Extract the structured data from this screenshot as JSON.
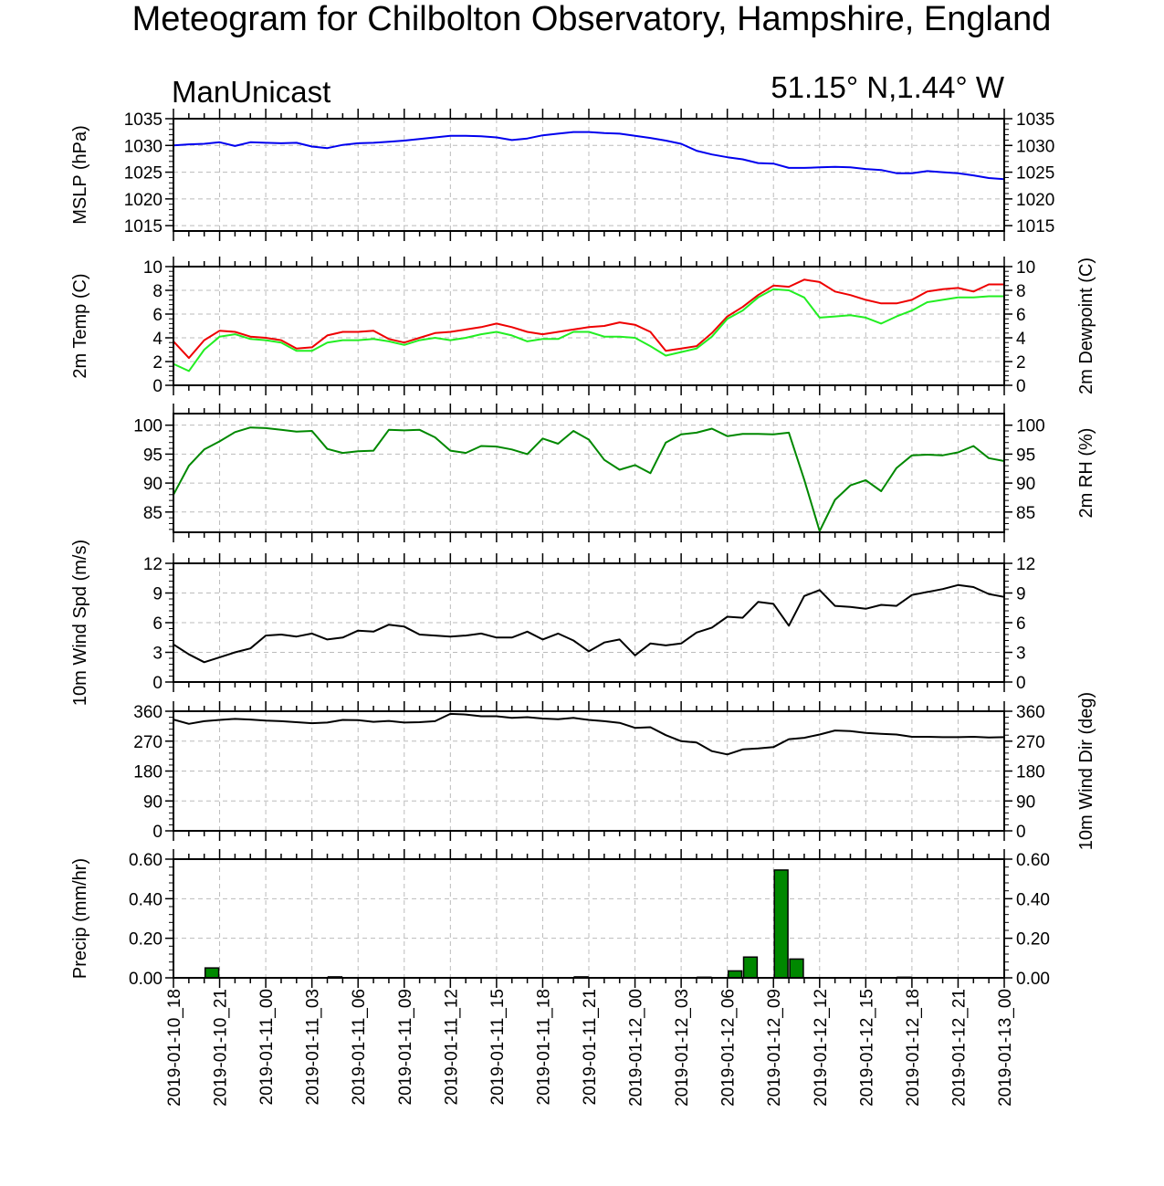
{
  "header": {
    "title": "Meteogram for Chilbolton Observatory, Hampshire, England",
    "left_label": "ManUnicast",
    "right_label": "51.15° N,1.44° W"
  },
  "colors": {
    "mslp": "#0000ee",
    "temp": "#ee0000",
    "dewpoint": "#22ee22",
    "rh": "#008800",
    "wind": "#000000",
    "precip_fill": "#008800",
    "grid": "#bbbbbb"
  },
  "chart_data": {
    "type": "line",
    "x_tick_labels": [
      "2019-01-10_18",
      "2019-01-10_21",
      "2019-01-11_00",
      "2019-01-11_03",
      "2019-01-11_06",
      "2019-01-11_09",
      "2019-01-11_12",
      "2019-01-11_15",
      "2019-01-11_18",
      "2019-01-11_21",
      "2019-01-12_00",
      "2019-01-12_03",
      "2019-01-12_06",
      "2019-01-12_09",
      "2019-01-12_12",
      "2019-01-12_15",
      "2019-01-12_18",
      "2019-01-12_21",
      "2019-01-13_00"
    ],
    "x_hours": [
      0,
      1,
      2,
      3,
      4,
      5,
      6,
      7,
      8,
      9,
      10,
      11,
      12,
      13,
      14,
      15,
      16,
      17,
      18,
      19,
      20,
      21,
      22,
      23,
      24,
      25,
      26,
      27,
      28,
      29,
      30,
      31,
      32,
      33,
      34,
      35,
      36,
      37,
      38,
      39,
      40,
      41,
      42,
      43,
      44,
      45,
      46,
      47,
      48,
      49,
      50,
      51,
      52,
      53,
      54
    ],
    "panels": [
      {
        "id": "mslp",
        "left_label": "MSLP (hPa)",
        "right_label": "",
        "ylim": [
          1014,
          1035
        ],
        "ticks": [
          1015,
          1020,
          1025,
          1030,
          1035
        ],
        "tick_labels": [
          "1015",
          "1020",
          "1025",
          "1030",
          "1035"
        ],
        "series": [
          {
            "key": "mslp",
            "values": [
              1030.0,
              1030.2,
              1030.3,
              1030.6,
              1029.9,
              1030.6,
              1030.5,
              1030.4,
              1030.5,
              1029.8,
              1029.5,
              1030.1,
              1030.4,
              1030.5,
              1030.7,
              1030.9,
              1031.2,
              1031.5,
              1031.8,
              1031.8,
              1031.7,
              1031.5,
              1031.0,
              1031.3,
              1031.9,
              1032.2,
              1032.5,
              1032.5,
              1032.3,
              1032.2,
              1031.8,
              1031.4,
              1030.9,
              1030.3,
              1029.0,
              1028.3,
              1027.8,
              1027.4,
              1026.7,
              1026.6,
              1025.8,
              1025.8,
              1025.9,
              1026.0,
              1025.9,
              1025.6,
              1025.4,
              1024.8,
              1024.8,
              1025.2,
              1025.0,
              1024.8,
              1024.4,
              1023.9,
              1023.7
            ]
          }
        ]
      },
      {
        "id": "temp",
        "left_label": "2m Temp (C)",
        "right_label": "2m Dewpoint (C)",
        "ylim": [
          0,
          10
        ],
        "ticks": [
          0,
          2,
          4,
          6,
          8,
          10
        ],
        "tick_labels": [
          "0",
          "2",
          "4",
          "6",
          "8",
          "10"
        ],
        "series": [
          {
            "key": "temp",
            "values": [
              3.7,
              2.3,
              3.8,
              4.6,
              4.5,
              4.1,
              4.0,
              3.8,
              3.1,
              3.2,
              4.2,
              4.5,
              4.5,
              4.6,
              3.9,
              3.6,
              4.0,
              4.4,
              4.5,
              4.7,
              4.9,
              5.2,
              4.9,
              4.5,
              4.3,
              4.5,
              4.7,
              4.9,
              5.0,
              5.3,
              5.1,
              4.5,
              2.9,
              3.1,
              3.3,
              4.4,
              5.8,
              6.6,
              7.6,
              8.4,
              8.3,
              8.9,
              8.7,
              7.9,
              7.6,
              7.2,
              6.9,
              6.9,
              7.2,
              7.9,
              8.1,
              8.2,
              7.9,
              8.5,
              8.5
            ]
          },
          {
            "key": "dewpoint",
            "values": [
              1.8,
              1.2,
              3.0,
              4.1,
              4.3,
              3.9,
              3.8,
              3.6,
              2.9,
              2.9,
              3.6,
              3.8,
              3.8,
              3.9,
              3.7,
              3.4,
              3.8,
              4.0,
              3.8,
              4.0,
              4.3,
              4.5,
              4.2,
              3.7,
              3.9,
              3.9,
              4.5,
              4.5,
              4.1,
              4.1,
              4.0,
              3.3,
              2.5,
              2.8,
              3.1,
              4.1,
              5.6,
              6.3,
              7.4,
              8.1,
              8.0,
              7.4,
              5.7,
              5.8,
              5.9,
              5.7,
              5.2,
              5.8,
              6.3,
              7.0,
              7.2,
              7.4,
              7.4,
              7.5,
              7.5
            ]
          }
        ]
      },
      {
        "id": "rh",
        "left_label": "",
        "right_label": "2m RH (%)",
        "ylim": [
          81.5,
          102
        ],
        "ticks": [
          85,
          90,
          95,
          100
        ],
        "tick_labels": [
          "85",
          "90",
          "95",
          "100"
        ],
        "series": [
          {
            "key": "rh",
            "values": [
              88.0,
              93.0,
              95.8,
              97.2,
              98.8,
              99.6,
              99.5,
              99.2,
              98.9,
              99.0,
              95.9,
              95.2,
              95.5,
              95.6,
              99.2,
              99.1,
              99.2,
              97.9,
              95.6,
              95.2,
              96.4,
              96.3,
              95.8,
              95.0,
              97.7,
              96.8,
              99.0,
              97.5,
              94.0,
              92.3,
              93.1,
              91.7,
              97.0,
              98.4,
              98.7,
              99.4,
              98.1,
              98.5,
              98.5,
              98.4,
              98.7,
              90.6,
              81.7,
              87.1,
              89.6,
              90.5,
              88.6,
              92.6,
              94.8,
              94.9,
              94.8,
              95.3,
              96.4,
              94.3,
              93.8
            ]
          }
        ]
      },
      {
        "id": "wind",
        "left_label": "10m Wind Spd (m/s)",
        "right_label": "",
        "ylim": [
          0,
          12
        ],
        "ticks": [
          0,
          3,
          6,
          9,
          12
        ],
        "tick_labels": [
          "0",
          "3",
          "6",
          "9",
          "12"
        ],
        "series": [
          {
            "key": "wind",
            "values": [
              3.8,
              2.8,
              2.0,
              2.5,
              3.0,
              3.4,
              4.7,
              4.8,
              4.6,
              4.9,
              4.3,
              4.5,
              5.2,
              5.1,
              5.8,
              5.6,
              4.8,
              4.7,
              4.6,
              4.7,
              4.9,
              4.5,
              4.5,
              5.1,
              4.3,
              4.9,
              4.2,
              3.1,
              4.0,
              4.3,
              2.7,
              3.9,
              3.7,
              3.9,
              5.0,
              5.5,
              6.6,
              6.5,
              8.1,
              7.9,
              5.7,
              8.7,
              9.3,
              7.7,
              7.6,
              7.4,
              7.8,
              7.7,
              8.8,
              9.1,
              9.4,
              9.8,
              9.6,
              8.9,
              8.6
            ]
          }
        ]
      },
      {
        "id": "winddir",
        "left_label": "",
        "right_label": "10m Wind Dir (deg)",
        "ylim": [
          0,
          360
        ],
        "ticks": [
          0,
          90,
          180,
          270,
          360
        ],
        "tick_labels": [
          "0",
          "90",
          "180",
          "270",
          "360"
        ],
        "series": [
          {
            "key": "wind",
            "values": [
              335,
              322,
              330,
              334,
              337,
              335,
              332,
              330,
              327,
              324,
              326,
              334,
              333,
              328,
              331,
              326,
              327,
              330,
              352,
              350,
              345,
              345,
              340,
              342,
              338,
              336,
              340,
              334,
              330,
              325,
              310,
              312,
              288,
              270,
              266,
              240,
              230,
              245,
              248,
              252,
              276,
              280,
              290,
              302,
              300,
              295,
              292,
              290,
              283,
              283,
              282,
              282,
              283,
              281,
              282
            ]
          }
        ]
      },
      {
        "id": "precip",
        "left_label": "Precip (mm/hr)",
        "right_label": "",
        "ylim": [
          0,
          0.6
        ],
        "ticks": [
          0,
          0.2,
          0.4,
          0.6
        ],
        "tick_labels": [
          "0.00",
          "0.20",
          "0.40",
          "0.60"
        ],
        "bars": [
          {
            "hour": 2,
            "value": 0.05
          },
          {
            "hour": 10,
            "value": 0.005
          },
          {
            "hour": 26,
            "value": 0.005
          },
          {
            "hour": 34,
            "value": 0.003
          },
          {
            "hour": 36,
            "value": 0.035
          },
          {
            "hour": 37,
            "value": 0.105
          },
          {
            "hour": 39,
            "value": 0.545
          },
          {
            "hour": 40,
            "value": 0.095
          },
          {
            "hour": 47,
            "value": 0.003
          }
        ]
      }
    ]
  }
}
